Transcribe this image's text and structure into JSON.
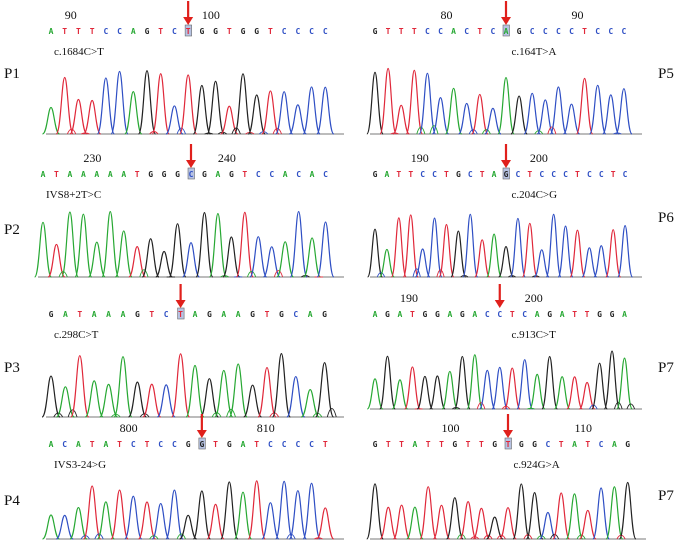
{
  "figure": {
    "colors": {
      "A": "#27a833",
      "C": "#2f4fc4",
      "G": "#222222",
      "T": "#e0283a",
      "arrow": "#e0201c",
      "axis": "#7a7a7a",
      "highlight": "#b7c3e3"
    },
    "panels": [
      {
        "id": "P1",
        "label": "P1",
        "mutation": "c.1684C>T",
        "sequence": "ATTTCCAGTCTGGTGGTCCCC",
        "markers": [
          {
            "num": "90",
            "i": 1
          },
          {
            "num": "100",
            "i": 11
          }
        ],
        "arrow_index": 10,
        "box_index": 10
      },
      {
        "id": "P5",
        "label": "P5",
        "mutation": "c.164T>A",
        "sequence": "GTTTCCACTCAGCCCCTCCC",
        "markers": [
          {
            "num": "80",
            "i": 5
          },
          {
            "num": "90",
            "i": 15
          }
        ],
        "arrow_index": 10,
        "box_index": 10
      },
      {
        "id": "P2",
        "label": "P2",
        "mutation": "IVS8+2T>C",
        "sequence": "ATAAAAATGGGCGAGTCCACAC",
        "markers": [
          {
            "num": "230",
            "i": 3
          },
          {
            "num": "240",
            "i": 13
          }
        ],
        "arrow_index": 11,
        "box_index": 11
      },
      {
        "id": "P6",
        "label": "P6",
        "mutation": "c.204C>G",
        "sequence": "GATTCCTGCTAGCTCCCTCCTC",
        "markers": [
          {
            "num": "190",
            "i": 3
          },
          {
            "num": "200",
            "i": 13
          }
        ],
        "arrow_index": 11,
        "box_index": 11
      },
      {
        "id": "P3",
        "label": "P3",
        "mutation": "c.298C>T",
        "sequence": "GATAAAGTCTAGAAGTGCAG",
        "markers": [],
        "arrow_index": 9,
        "box_index": 9
      },
      {
        "id": "P7a",
        "label": "P7",
        "mutation": "c.913C>T",
        "sequence": "AGATGGAGACCTCAGATTGGA",
        "markers": [
          {
            "num": "190",
            "i": 2
          },
          {
            "num": "200",
            "i": 12
          }
        ],
        "arrow_index": 10,
        "box_index": null
      },
      {
        "id": "P4",
        "label": "P4",
        "mutation": "IVS3-24>G",
        "sequence": "ACATATCTCCGGTGATCCCCT",
        "markers": [
          {
            "num": "800",
            "i": 5
          },
          {
            "num": "810",
            "i": 15
          }
        ],
        "arrow_index": 11,
        "box_index": 11
      },
      {
        "id": "P7b",
        "label": "P7",
        "mutation": "c.924G>A",
        "sequence": "GTTATTGTTGTGGCTATCAG",
        "markers": [
          {
            "num": "100",
            "i": 5
          },
          {
            "num": "110",
            "i": 15
          }
        ],
        "arrow_index": 10,
        "box_index": 10
      }
    ]
  }
}
